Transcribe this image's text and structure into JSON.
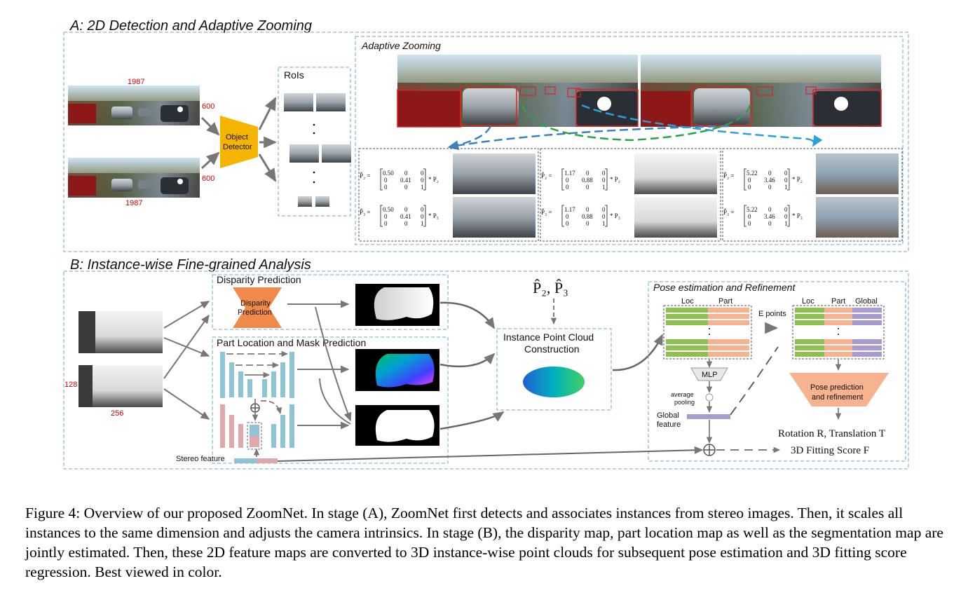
{
  "section_a": {
    "title": "A: 2D Detection and Adaptive Zooming",
    "image_width_top": "1987",
    "image_width_bottom": "1987",
    "image_height_top": "600",
    "image_height_bottom": "600",
    "detector_line1": "Object",
    "detector_line2": "Detector",
    "rois_label": "RoIs",
    "adaptive_title": "Adaptive Zooming",
    "zoom_panels": [
      {
        "p2_name": "P̂₂ =",
        "p3_name": "P̂₃ =",
        "s1": "0.50",
        "s2": "0.41",
        "z": "0",
        "one": "1",
        "p2_suffix": "* P₂",
        "p3_suffix": "* P₃"
      },
      {
        "p2_name": "P̂₂ =",
        "p3_name": "P̂₃ =",
        "s1": "1.17",
        "s2": "0.88",
        "z": "0",
        "one": "1",
        "p2_suffix": "* P₂",
        "p3_suffix": "* P₃"
      },
      {
        "p2_name": "P̂₂ =",
        "p3_name": "P̂₃ =",
        "s1": "5.22",
        "s2": "3.46",
        "z": "0",
        "one": "1",
        "p2_suffix": "* P₂",
        "p3_suffix": "* P₃"
      }
    ]
  },
  "section_b": {
    "title": "B: Instance-wise Fine-grained Analysis",
    "crop_height": "128",
    "crop_width": "256",
    "disparity_title": "Disparity Prediction",
    "disparity_net_line1": "Disparity",
    "disparity_net_line2": "Prediction",
    "part_title": "Part Location and Mask Prediction",
    "stereo_feature": "Stereo feature",
    "proj_label": "P̂₂, P̂₃",
    "ipc_line1": "Instance Point Cloud",
    "ipc_line2": "Construction",
    "pose_title": "Pose estimation and Refinement",
    "loc_label": "Loc",
    "part_label": "Part",
    "global_label": "Global",
    "e_points": "E points",
    "mlp": "MLP",
    "avg_pool_line1": "average",
    "avg_pool_line2": "pooling",
    "global_feature_line1": "Global",
    "global_feature_line2": "feature",
    "pose_pred_line1": "Pose prediction",
    "pose_pred_line2": "and refinement",
    "rotation_translation": "Rotation R, Translation T",
    "fitting_score": "3D Fitting Score F"
  },
  "caption": "Figure 4: Overview of our proposed ZoomNet. In stage (A), ZoomNet first detects and associates instances from stereo images. Then, it scales all instances to the same dimension and adjusts the camera intrinsics. In stage (B), the disparity map, part location map as well as the segmentation map are jointly estimated. Then, these 2D feature maps are converted to 3D instance-wise point clouds for subsequent pose estimation and 3D fitting score regression. Best viewed in color.",
  "colors": {
    "frame_dash": "#6fa8c8",
    "detector": "#f5b400",
    "disparity_net": "#f08a4b",
    "loc_green": "#8cc152",
    "part_salmon": "#f7b28f",
    "global_purple": "#a99bd0",
    "unet_blue": "#8fc3d6",
    "unet_pink": "#e0a9a9",
    "curve_blue": "#3d7fc1",
    "curve_green": "#2aa24a",
    "curve_cyan": "#2aa0d8"
  }
}
